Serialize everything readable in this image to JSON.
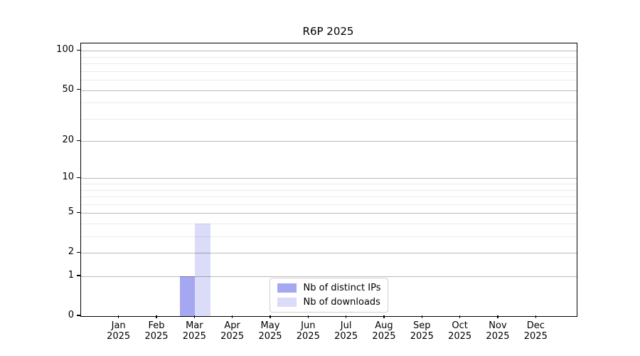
{
  "chart_data": {
    "type": "bar",
    "title": "R6P 2025",
    "categories": [
      "Jan",
      "Feb",
      "Mar",
      "Apr",
      "May",
      "Jun",
      "Jul",
      "Aug",
      "Sep",
      "Oct",
      "Nov",
      "Dec"
    ],
    "year": "2025",
    "series": [
      {
        "name": "Nb of distinct IPs",
        "color": "#a5a8f0",
        "values": [
          0,
          0,
          1,
          0,
          0,
          0,
          0,
          0,
          0,
          0,
          0,
          0
        ]
      },
      {
        "name": "Nb of downloads",
        "color": "#dadcf8",
        "values": [
          0,
          0,
          4,
          0,
          0,
          0,
          0,
          0,
          0,
          0,
          0,
          0
        ]
      }
    ],
    "yscale": "log1p",
    "yticks_major": [
      0,
      1,
      2,
      5,
      10,
      20,
      50,
      100
    ],
    "yticks_minor": [
      3,
      4,
      6,
      7,
      8,
      9,
      30,
      40,
      60,
      70,
      80,
      90
    ],
    "ylim": [
      0,
      114
    ],
    "grid": true,
    "legend_position": "lower center",
    "axis_color": "#000000",
    "major_grid_color": "#b9b9b9",
    "minor_grid_color": "#eaeaea"
  }
}
